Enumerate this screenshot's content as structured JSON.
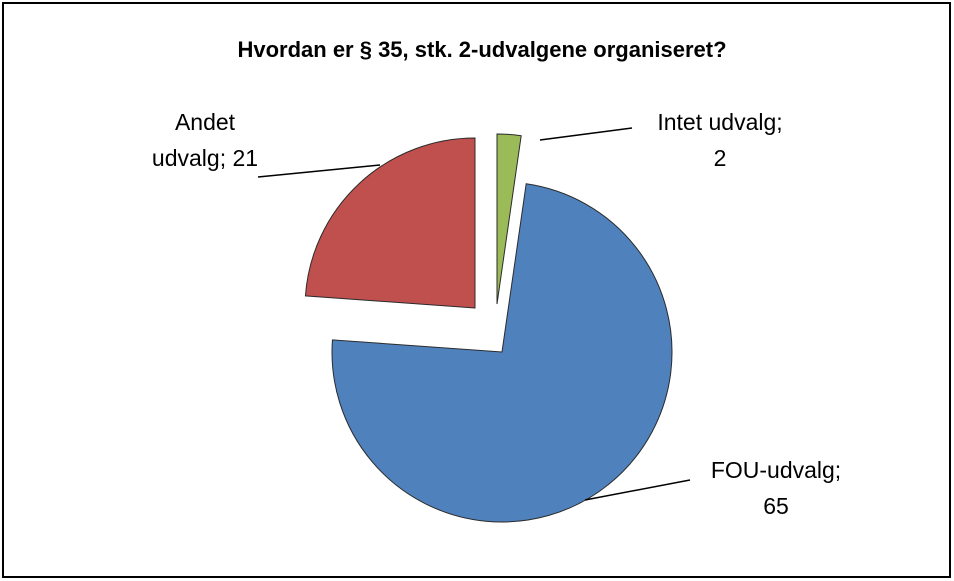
{
  "chart_data": {
    "type": "pie",
    "title": "Hvordan er § 35, stk. 2-udvalgene organiseret?",
    "values": [
      2,
      65,
      21
    ],
    "value_labels": [
      "Intet udvalg; 2",
      "FOU-udvalg; 65",
      "Andet udvalg; 21"
    ],
    "colors": [
      "#9bbb59",
      "#4f81bd",
      "#c0504d"
    ]
  }
}
